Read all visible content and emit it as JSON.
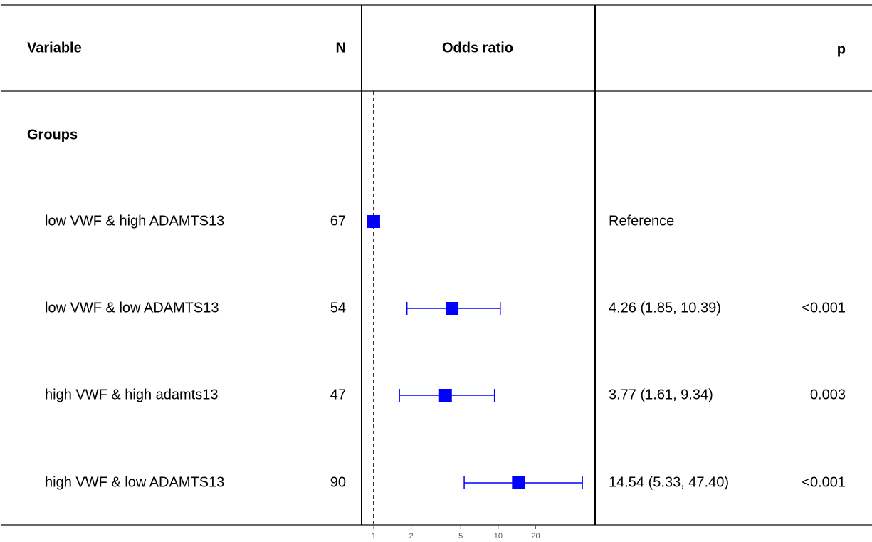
{
  "chart_data": {
    "type": "forest",
    "headers": {
      "variable": "Variable",
      "n": "N",
      "plot": "Odds ratio",
      "p": "p"
    },
    "group": "Groups",
    "categories": [
      "low VWF & high ADAMTS13",
      "low VWF & low ADAMTS13",
      "high VWF & high adamts13",
      "high VWF & low ADAMTS13"
    ],
    "n": [
      67,
      54,
      47,
      90
    ],
    "values": [
      1,
      4.26,
      3.77,
      14.54
    ],
    "lower": [
      null,
      1.85,
      1.61,
      5.33
    ],
    "upper": [
      null,
      10.39,
      9.34,
      47.4
    ],
    "value_labels": [
      "Reference",
      "4.26 (1.85, 10.39)",
      "3.77 (1.61, 9.34)",
      "14.54 (5.33, 47.40)"
    ],
    "p_labels": [
      null,
      "<0.001",
      "0.003",
      "<0.001"
    ],
    "color": "#0000ff",
    "log_x": true,
    "xlim": [
      0.8,
      60
    ],
    "xticks": [
      1,
      2,
      5,
      10,
      20
    ],
    "reference_line": 1
  }
}
